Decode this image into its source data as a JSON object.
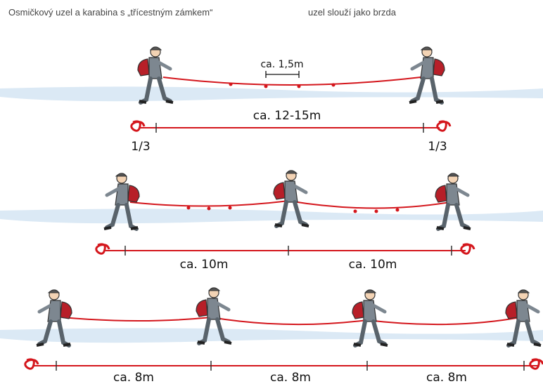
{
  "header": {
    "left": "Osmičkový uzel a karabina s „třícestným zámkem“",
    "right": "uzel slouží jako brzda"
  },
  "rows": [
    {
      "spacing_label": "ca. 1,5m",
      "distance_labels": [
        "ca. 12-15m"
      ],
      "fraction_labels": [
        "1/3",
        "1/3"
      ]
    },
    {
      "distance_labels": [
        "ca. 10m",
        "ca. 10m"
      ]
    },
    {
      "distance_labels": [
        "ca. 8m",
        "ca. 8m",
        "ca. 8m"
      ]
    }
  ]
}
